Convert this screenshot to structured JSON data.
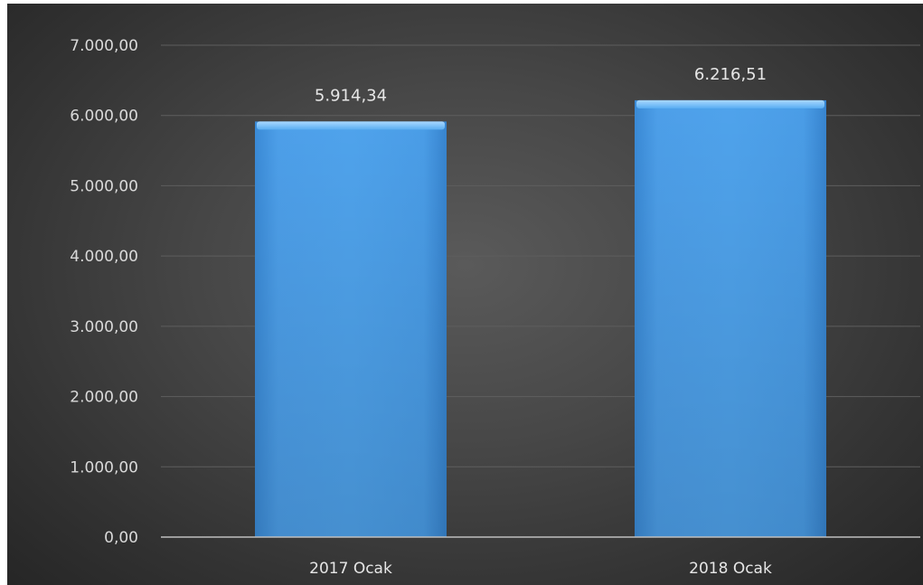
{
  "chart_data": {
    "type": "bar",
    "categories": [
      "2017 Ocak",
      "2018 Ocak"
    ],
    "values": [
      5914.34,
      6216.51
    ],
    "value_labels": [
      "5.914,34",
      "6.216,51"
    ],
    "ylim": [
      0,
      7000
    ],
    "yticks": [
      0,
      1000,
      2000,
      3000,
      4000,
      5000,
      6000,
      7000
    ],
    "ytick_labels": [
      "0,00",
      "1.000,00",
      "2.000,00",
      "3.000,00",
      "4.000,00",
      "5.000,00",
      "6.000,00",
      "7.000,00"
    ],
    "title": "",
    "xlabel": "",
    "ylabel": "",
    "grid": true,
    "legend": false,
    "colors": {
      "bar": "#4a9ee8",
      "background": "#404040",
      "gridline": "#5e5e5e",
      "axis": "#bfbfbf"
    }
  }
}
